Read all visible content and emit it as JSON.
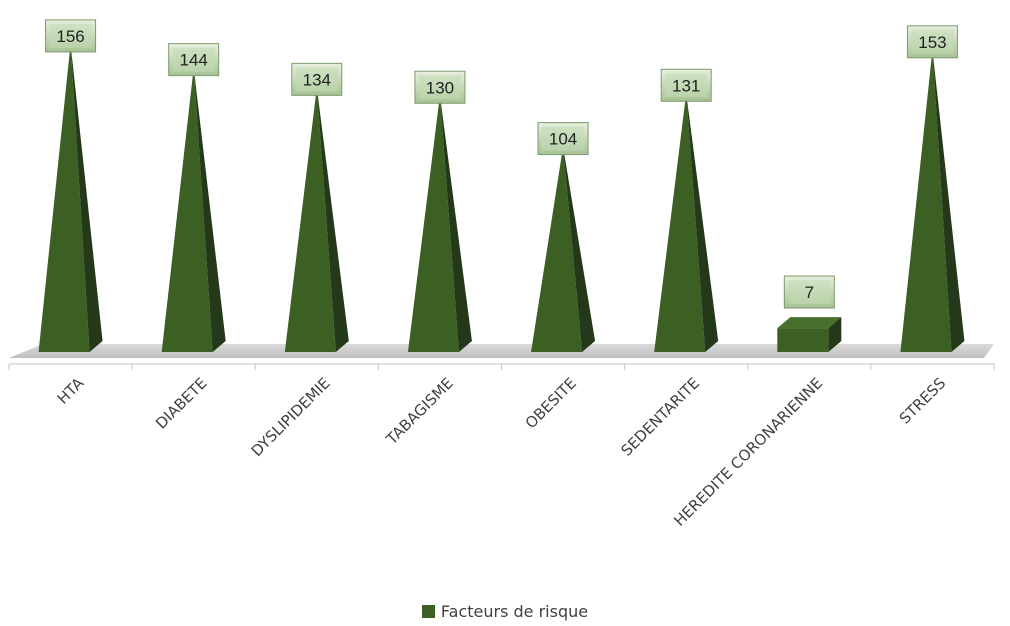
{
  "chart_data": {
    "type": "bar",
    "categories": [
      "HTA",
      "DIABETE",
      "DYSLIPIDEMIE",
      "TABAGISME",
      "OBESITE",
      "SEDENTARITE",
      "HEREDITE CORONARIENNE",
      "STRESS"
    ],
    "series": [
      {
        "name": "Facteurs de risque",
        "values": [
          156,
          144,
          134,
          130,
          104,
          131,
          7,
          153
        ]
      }
    ],
    "ylim": [
      0,
      160
    ],
    "grid": false,
    "legend_position": "bottom"
  },
  "colors": {
    "bar_front": "#3c5f23",
    "bar_side": "#24391a",
    "label_box": "#c3dbb4",
    "axis": "#c6c6c6"
  }
}
